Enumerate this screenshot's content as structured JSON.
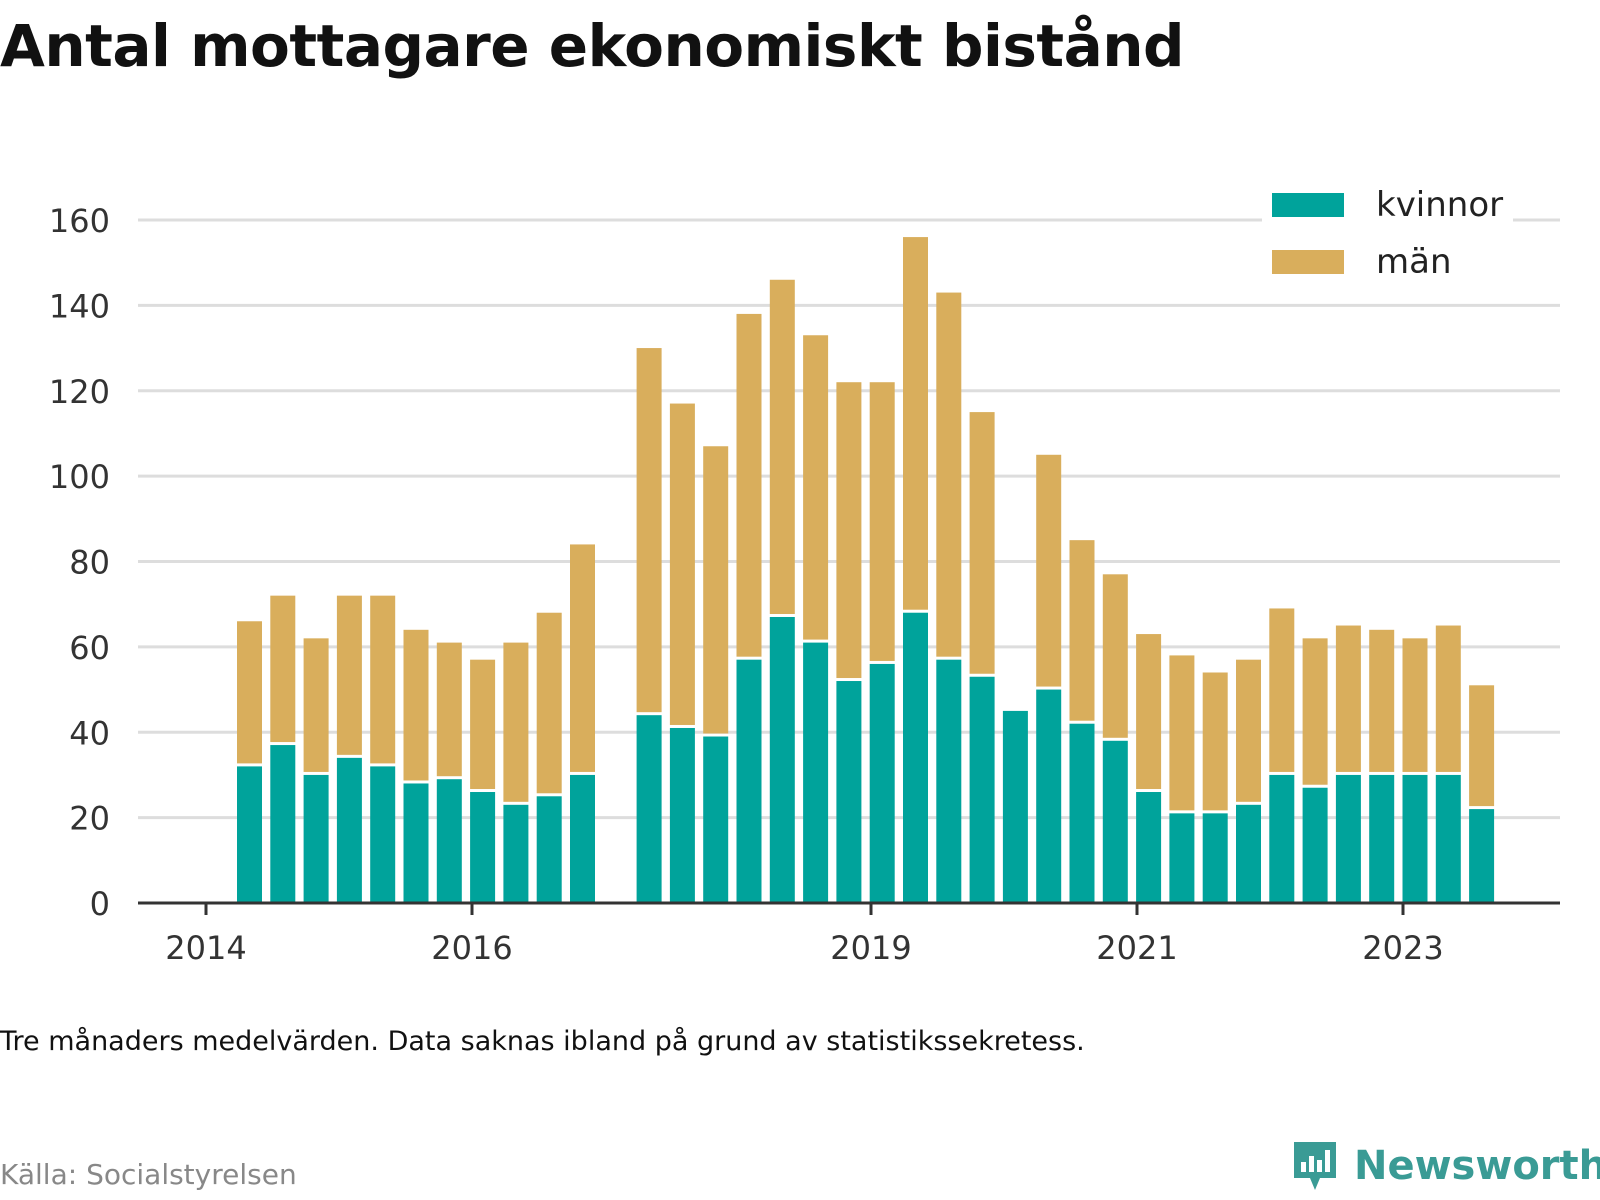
{
  "title": "Antal mottagare ekonomiskt bistånd",
  "note": "Tre månaders medelvärden. Data saknas ibland på grund av statistikssekretess.",
  "source": "Källa: Socialstyrelsen",
  "brand": "Newsworthy",
  "colors": {
    "kvinnor": "#00a39b",
    "man": "#d9ae5c",
    "grid": "#dddddd",
    "axis": "#333333",
    "brand": "#3a9b95"
  },
  "chart_data": {
    "type": "bar",
    "stacked": true,
    "x_ticks": [
      "2014",
      "2016",
      "2019",
      "2021",
      "2023"
    ],
    "y_ticks": [
      "0",
      "20",
      "40",
      "60",
      "80",
      "100",
      "120",
      "140",
      "160"
    ],
    "ylim": [
      0,
      170
    ],
    "legend_position": "top-right",
    "series": [
      {
        "name": "kvinnor",
        "values": [
          32,
          37,
          30,
          34,
          32,
          28,
          29,
          26,
          23,
          25,
          30,
          null,
          44,
          41,
          39,
          57,
          67,
          61,
          52,
          56,
          68,
          57,
          53,
          45,
          50,
          42,
          38,
          26,
          21,
          21,
          23,
          30,
          27,
          30,
          30,
          30,
          30,
          22
        ]
      },
      {
        "name": "män",
        "values": [
          34,
          35,
          32,
          38,
          40,
          36,
          32,
          31,
          38,
          43,
          54,
          null,
          86,
          76,
          68,
          81,
          79,
          72,
          70,
          66,
          88,
          86,
          62,
          null,
          55,
          43,
          39,
          37,
          37,
          33,
          34,
          39,
          35,
          35,
          34,
          32,
          35,
          29
        ]
      }
    ]
  }
}
